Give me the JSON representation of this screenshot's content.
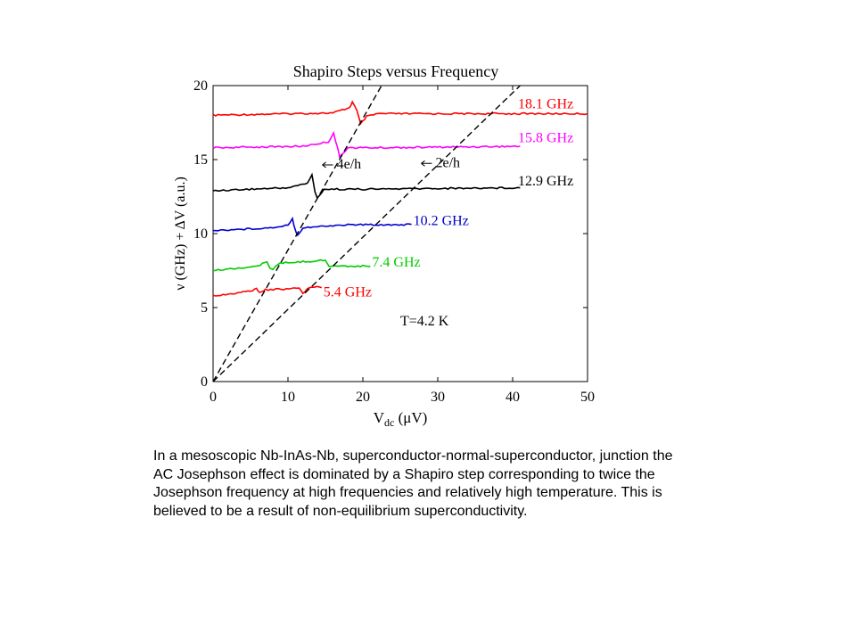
{
  "chart_data": {
    "type": "line",
    "title": "Shapiro Steps versus Frequency",
    "xlabel": "V",
    "xlabel_sub": "dc",
    "xlabel_unit": " (μV)",
    "ylabel": "ν (GHz) + ΔV (a.u.)",
    "xlim": [
      0,
      50
    ],
    "ylim": [
      0,
      20
    ],
    "xticks": [
      0,
      10,
      20,
      30,
      40,
      50
    ],
    "yticks": [
      0,
      5,
      10,
      15,
      20
    ],
    "grid": false,
    "series": [
      {
        "name": "18.1 GHz",
        "color": "#ff0000",
        "offset": 18.1,
        "x_end": 50,
        "points": [
          [
            0,
            18.0
          ],
          [
            10,
            18.1
          ],
          [
            16,
            18.15
          ],
          [
            18.2,
            18.5
          ],
          [
            18.6,
            18.9
          ],
          [
            19.2,
            18.3
          ],
          [
            19.7,
            17.4
          ],
          [
            20.5,
            17.9
          ],
          [
            22,
            18.1
          ],
          [
            50,
            18.1
          ]
        ]
      },
      {
        "name": "15.8 GHz",
        "color": "#ff00ff",
        "offset": 15.8,
        "x_end": 41,
        "points": [
          [
            0,
            15.8
          ],
          [
            12,
            15.9
          ],
          [
            15.4,
            16.2
          ],
          [
            16.1,
            16.8
          ],
          [
            16.6,
            15.8
          ],
          [
            16.9,
            15.2
          ],
          [
            18,
            15.8
          ],
          [
            22,
            15.8
          ],
          [
            41,
            15.9
          ]
        ]
      },
      {
        "name": "12.9 GHz",
        "color": "#000000",
        "offset": 12.9,
        "x_end": 41,
        "points": [
          [
            0,
            12.9
          ],
          [
            10,
            13.1
          ],
          [
            12.6,
            13.4
          ],
          [
            13.2,
            14.0
          ],
          [
            13.6,
            12.8
          ],
          [
            13.9,
            12.4
          ],
          [
            14.8,
            13.0
          ],
          [
            20,
            13.0
          ],
          [
            41,
            13.1
          ]
        ]
      },
      {
        "name": "10.2 GHz",
        "color": "#0000cc",
        "offset": 10.2,
        "x_end": 26.5,
        "points": [
          [
            0,
            10.2
          ],
          [
            8,
            10.4
          ],
          [
            10,
            10.6
          ],
          [
            10.6,
            11.0
          ],
          [
            11.0,
            10.2
          ],
          [
            11.3,
            9.9
          ],
          [
            12,
            10.4
          ],
          [
            18,
            10.6
          ],
          [
            26.5,
            10.6
          ]
        ]
      },
      {
        "name": "7.4 GHz",
        "color": "#00cc00",
        "offset": 7.4,
        "x_end": 21,
        "points": [
          [
            0,
            7.5
          ],
          [
            6,
            7.8
          ],
          [
            7.2,
            8.1
          ],
          [
            7.6,
            7.7
          ],
          [
            8,
            7.6
          ],
          [
            9,
            8.0
          ],
          [
            15,
            8.2
          ],
          [
            15.5,
            7.8
          ],
          [
            16,
            7.8
          ],
          [
            21,
            7.8
          ]
        ]
      },
      {
        "name": "5.4 GHz",
        "color": "#ff0000",
        "offset": 5.4,
        "x_end": 14.5,
        "points": [
          [
            0,
            5.8
          ],
          [
            5,
            6.1
          ],
          [
            5.8,
            6.3
          ],
          [
            6.2,
            6.0
          ],
          [
            7,
            6.2
          ],
          [
            11.5,
            6.3
          ],
          [
            12,
            5.9
          ],
          [
            12.6,
            6.3
          ],
          [
            13.5,
            6.4
          ],
          [
            14.5,
            6.4
          ]
        ]
      },
      {
        "name": "4e/h",
        "color": "#000000",
        "dashed": true,
        "points": [
          [
            0,
            0
          ],
          [
            22.5,
            20
          ]
        ]
      },
      {
        "name": "2e/h",
        "color": "#000000",
        "dashed": true,
        "points": [
          [
            0,
            0
          ],
          [
            41,
            20
          ]
        ]
      }
    ],
    "annotations": [
      {
        "text": "4e/h",
        "x": 16.5,
        "y": 14.4,
        "arrow": true
      },
      {
        "text": "2e/h",
        "x": 29.7,
        "y": 14.5,
        "arrow": true
      },
      {
        "text": "T=4.2 K",
        "x": 25,
        "y": 3.8,
        "arrow": false
      }
    ]
  },
  "caption": "In a mesoscopic Nb-InAs-Nb, superconductor-normal-superconductor,  junction the AC Josephson effect is dominated by a Shapiro step corresponding to twice the Josephson frequency at high frequencies and relatively high temperature.  This is believed to be a result of non-equilibrium superconductivity."
}
